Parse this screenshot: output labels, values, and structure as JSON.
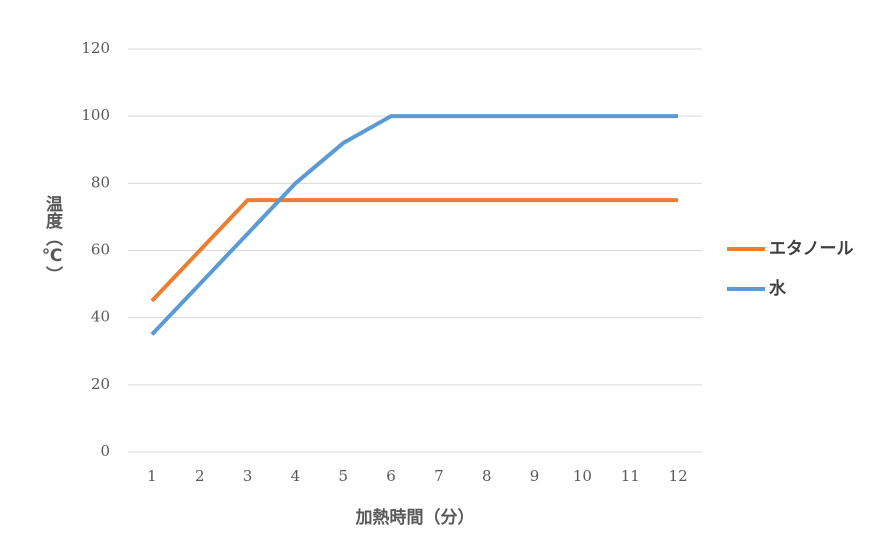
{
  "chart_data": {
    "type": "line",
    "x_label": "加熱時間（分）",
    "y_label": "温度（℃）",
    "categories": [
      "1",
      "2",
      "3",
      "4",
      "5",
      "6",
      "7",
      "8",
      "9",
      "10",
      "11",
      "12"
    ],
    "series": [
      {
        "name": "エタノール",
        "color": "#ed7d31",
        "values": [
          45,
          60,
          75,
          75,
          75,
          75,
          75,
          75,
          75,
          75,
          75,
          75
        ]
      },
      {
        "name": "水",
        "color": "#5b9bd5",
        "values": [
          35,
          50,
          65,
          80,
          92,
          100,
          100,
          100,
          100,
          100,
          100,
          100
        ]
      }
    ],
    "ylim": [
      0,
      120
    ],
    "yticks": [
      0,
      20,
      40,
      60,
      80,
      100,
      120
    ],
    "grid": true,
    "legend": "right"
  }
}
